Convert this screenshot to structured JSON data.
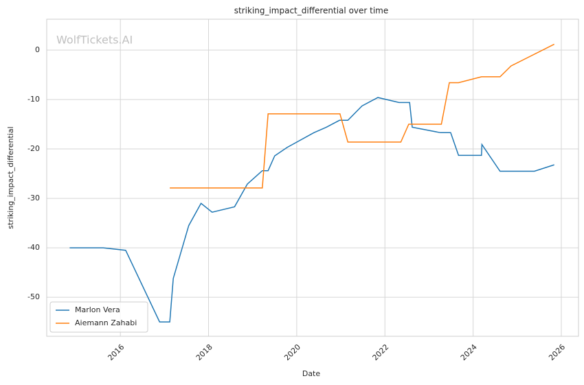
{
  "chart_data": {
    "type": "line",
    "title": "striking_impact_differential over time",
    "xlabel": "Date",
    "ylabel": "striking_impact_differential",
    "watermark": "WolfTickets.AI",
    "xlim": [
      2014.33,
      2026.39
    ],
    "xticks": [
      2016,
      2018,
      2020,
      2022,
      2024,
      2026
    ],
    "ylim": [
      -57.9,
      6.25
    ],
    "yticks": [
      0,
      -10,
      -20,
      -30,
      -40,
      -50
    ],
    "grid": true,
    "legend": "lower left",
    "series": [
      {
        "name": "Marlon Vera",
        "color": "#1f77b4",
        "x": [
          2014.85,
          2015.61,
          2016.12,
          2016.89,
          2017.12,
          2017.2,
          2017.55,
          2017.83,
          2018.08,
          2018.59,
          2018.88,
          2019.22,
          2019.35,
          2019.5,
          2019.78,
          2020.39,
          2020.67,
          2020.97,
          2021.16,
          2021.48,
          2021.84,
          2022.32,
          2022.56,
          2022.62,
          2023.26,
          2023.49,
          2023.67,
          2024.19,
          2024.2,
          2024.61,
          2025.39,
          2025.84
        ],
        "values": [
          -40,
          -40,
          -40.5,
          -55,
          -55,
          -46.2,
          -35.5,
          -31,
          -32.8,
          -31.7,
          -27.1,
          -24.4,
          -24.4,
          -21.4,
          -19.7,
          -16.7,
          -15.6,
          -14.2,
          -14.2,
          -11.3,
          -9.6,
          -10.6,
          -10.6,
          -15.6,
          -16.7,
          -16.7,
          -21.3,
          -21.3,
          -19.1,
          -24.5,
          -24.5,
          -23.2
        ]
      },
      {
        "name": "Aiemann Zahabi",
        "color": "#ff7f0e",
        "x": [
          2017.12,
          2019.22,
          2019.35,
          2020.98,
          2021.16,
          2022.36,
          2022.54,
          2023.28,
          2023.46,
          2023.67,
          2024.19,
          2024.61,
          2024.86,
          2025.84
        ],
        "values": [
          -27.9,
          -27.9,
          -12.9,
          -12.9,
          -18.6,
          -18.6,
          -15,
          -15,
          -6.6,
          -6.6,
          -5.4,
          -5.4,
          -3.2,
          1.2
        ]
      }
    ]
  }
}
